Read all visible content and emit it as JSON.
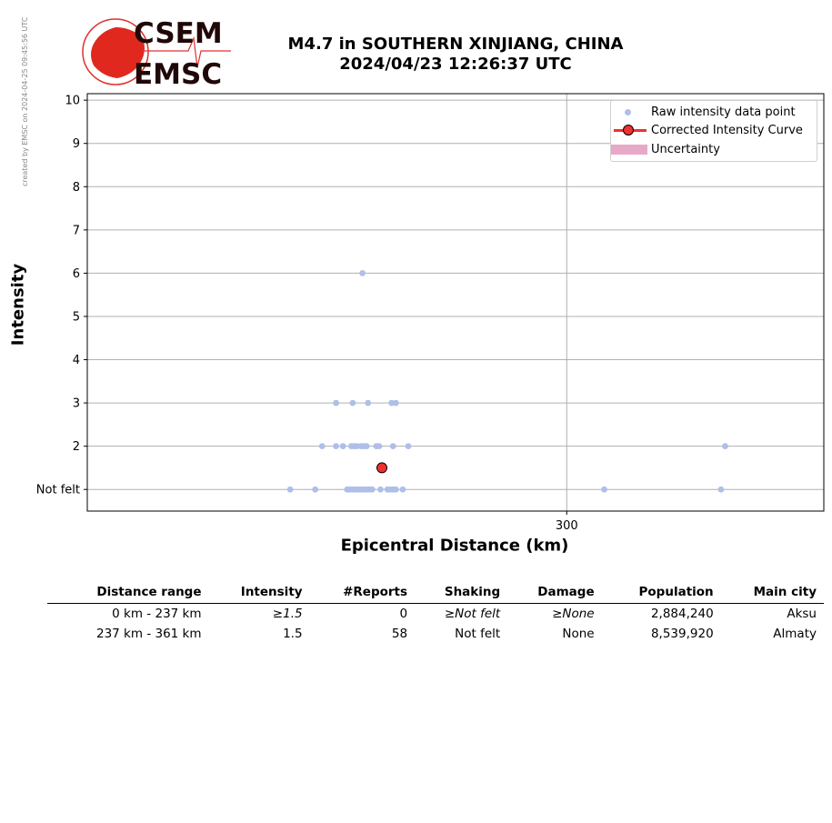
{
  "header": {
    "side_note": "created by EMSC on 2024-04-25 09:45:56 UTC",
    "logo_text_top": "CSEM",
    "logo_text_bottom": "EMSC",
    "title_line1": "M4.7 in SOUTHERN XINJIANG, CHINA",
    "title_line2": "2024/04/23 12:26:37 UTC"
  },
  "colors": {
    "raw_points": "#aebfe8",
    "corrected_curve": "#f03030",
    "uncertainty": "#e8a8c8",
    "grid": "#b0b0b0"
  },
  "legend": {
    "raw_label": "Raw intensity data point",
    "curve_label": "Corrected Intensity Curve",
    "uncertainty_label": "Uncertainty"
  },
  "chart_data": {
    "type": "scatter",
    "xlabel": "Epicentral Distance (km)",
    "ylabel": "Intensity",
    "xlim": [
      -45,
      485
    ],
    "ylim": [
      0.5,
      10.15
    ],
    "x_ticks": [
      300
    ],
    "y_ticks": [
      {
        "value": 1,
        "label": "Not felt"
      },
      {
        "value": 2,
        "label": "2"
      },
      {
        "value": 3,
        "label": "3"
      },
      {
        "value": 4,
        "label": "4"
      },
      {
        "value": 5,
        "label": "5"
      },
      {
        "value": 6,
        "label": "6"
      },
      {
        "value": 7,
        "label": "7"
      },
      {
        "value": 8,
        "label": "8"
      },
      {
        "value": 9,
        "label": "9"
      },
      {
        "value": 10,
        "label": "10"
      }
    ],
    "grid": true,
    "legend_position": "top-right",
    "series": [
      {
        "name": "Raw intensity data point",
        "points": [
          [
            153,
            6
          ],
          [
            134,
            3
          ],
          [
            146,
            3
          ],
          [
            157,
            3
          ],
          [
            174,
            3
          ],
          [
            177,
            3
          ],
          [
            124,
            2
          ],
          [
            134,
            2
          ],
          [
            139,
            2
          ],
          [
            145,
            2
          ],
          [
            147,
            2
          ],
          [
            149,
            2
          ],
          [
            152,
            2
          ],
          [
            154,
            2
          ],
          [
            156,
            2
          ],
          [
            163,
            2
          ],
          [
            165,
            2
          ],
          [
            175,
            2
          ],
          [
            186,
            2
          ],
          [
            414,
            2
          ],
          [
            101,
            1
          ],
          [
            119,
            1
          ],
          [
            142,
            1
          ],
          [
            144,
            1
          ],
          [
            146,
            1
          ],
          [
            148,
            1
          ],
          [
            150,
            1
          ],
          [
            152,
            1
          ],
          [
            154,
            1
          ],
          [
            156,
            1
          ],
          [
            158,
            1
          ],
          [
            160,
            1
          ],
          [
            166,
            1
          ],
          [
            171,
            1
          ],
          [
            173,
            1
          ],
          [
            175,
            1
          ],
          [
            177,
            1
          ],
          [
            182,
            1
          ],
          [
            327,
            1
          ],
          [
            411,
            1
          ]
        ]
      },
      {
        "name": "Corrected Intensity Curve",
        "points": [
          [
            167,
            1.5
          ]
        ]
      }
    ]
  },
  "table": {
    "headers": [
      "Distance range",
      "Intensity",
      "#Reports",
      "Shaking",
      "Damage",
      "Population",
      "Main city"
    ],
    "rows": [
      {
        "range": "0 km -  237 km",
        "intensity": "≥1.5",
        "reports": "0",
        "shaking": "≥Not felt",
        "damage": "≥None",
        "population": "2,884,240",
        "city": "Aksu"
      },
      {
        "range": "237 km -  361 km",
        "intensity": "1.5",
        "reports": "58",
        "shaking": "Not felt",
        "damage": "None",
        "population": "8,539,920",
        "city": "Almaty"
      }
    ]
  }
}
